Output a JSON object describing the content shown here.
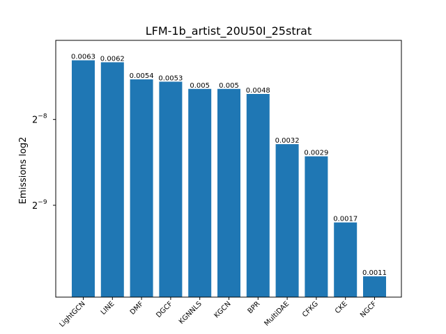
{
  "chart_data": {
    "type": "bar",
    "title": "LFM-1b_artist_20U50I_25strat",
    "xlabel": "",
    "ylabel": "Emissions log2",
    "yscale": "log2",
    "ylim": [
      0.00093,
      0.0074
    ],
    "yticks": [
      {
        "base": "2",
        "exp": "−8",
        "value": 0.00390625
      },
      {
        "base": "2",
        "exp": "−9",
        "value": 0.001953125
      }
    ],
    "categories": [
      "LightGCN",
      "LINE",
      "DMF",
      "DGCF",
      "KGNNLS",
      "KGCN",
      "BPR",
      "MultiDAE",
      "CFKG",
      "CKE",
      "NGCF"
    ],
    "values": [
      0.0063,
      0.0062,
      0.0054,
      0.0053,
      0.005,
      0.005,
      0.0048,
      0.0032,
      0.0029,
      0.0017,
      0.0011
    ],
    "labels": [
      "0.0063",
      "0.0062",
      "0.0054",
      "0.0053",
      "0.005",
      "0.005",
      "0.0048",
      "0.0032",
      "0.0029",
      "0.0017",
      "0.0011"
    ],
    "bar_color": "#1f77b4",
    "grid": false,
    "legend": "none"
  }
}
